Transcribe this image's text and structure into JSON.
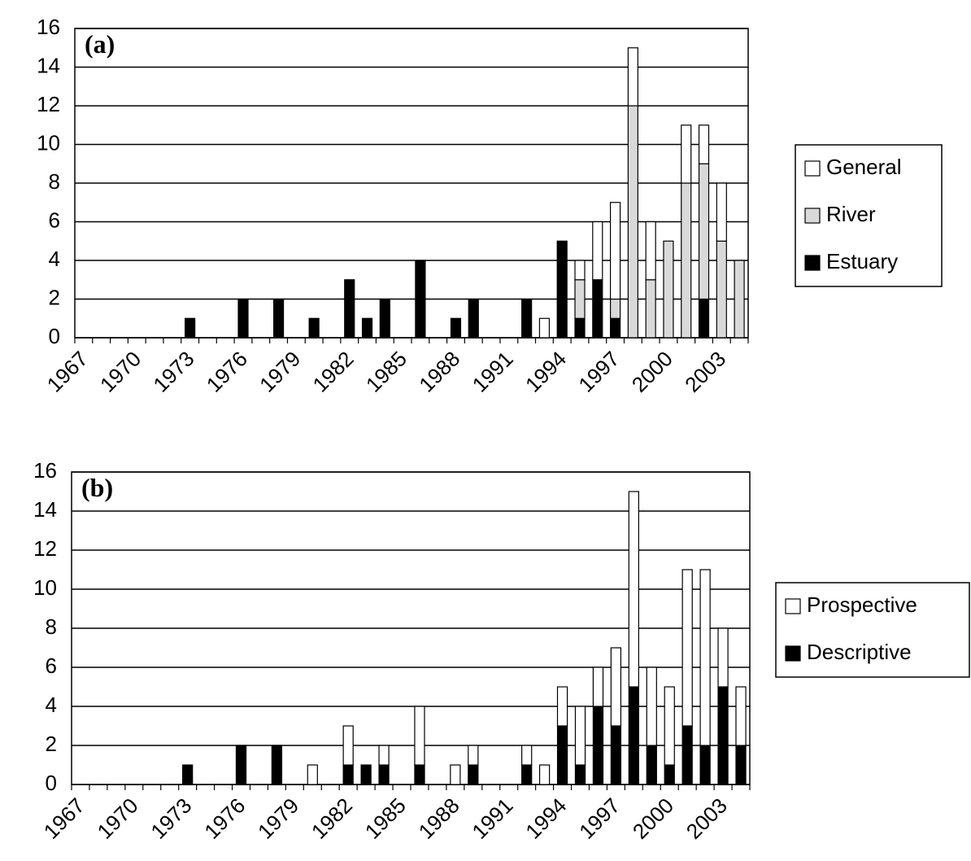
{
  "chart_data": [
    {
      "type": "bar",
      "stacked": true,
      "title": "(a)",
      "categories": [
        "1967",
        null,
        null,
        "1970",
        null,
        null,
        "1973",
        null,
        null,
        "1976",
        null,
        null,
        "1979",
        null,
        null,
        "1982",
        null,
        null,
        "1985",
        null,
        null,
        "1988",
        null,
        null,
        "1991",
        null,
        null,
        "1994",
        null,
        null,
        "1997",
        null,
        null,
        "2000",
        null,
        null,
        "2003",
        null
      ],
      "series": [
        {
          "name": "Estuary",
          "color": "#000000",
          "values": [
            0,
            0,
            0,
            0,
            0,
            0,
            1,
            0,
            0,
            2,
            0,
            2,
            0,
            1,
            0,
            3,
            1,
            2,
            0,
            4,
            0,
            1,
            2,
            0,
            0,
            2,
            0,
            5,
            1,
            3,
            1,
            0,
            0,
            0,
            0,
            2,
            0,
            0
          ]
        },
        {
          "name": "River",
          "color": "#d9d9d9",
          "values": [
            0,
            0,
            0,
            0,
            0,
            0,
            0,
            0,
            0,
            0,
            0,
            0,
            0,
            0,
            0,
            0,
            0,
            0,
            0,
            0,
            0,
            0,
            0,
            0,
            0,
            0,
            0,
            0,
            2,
            0,
            1,
            12,
            3,
            5,
            8,
            7,
            5,
            4
          ]
        },
        {
          "name": "General",
          "color": "#ffffff",
          "values": [
            0,
            0,
            0,
            0,
            0,
            0,
            0,
            0,
            0,
            0,
            0,
            0,
            0,
            0,
            0,
            0,
            0,
            0,
            0,
            0,
            0,
            0,
            0,
            0,
            0,
            0,
            1,
            0,
            1,
            3,
            5,
            3,
            3,
            0,
            3,
            2,
            3,
            0
          ]
        }
      ],
      "ylim": [
        0,
        16
      ],
      "yticks": [
        0,
        2,
        4,
        6,
        8,
        10,
        12,
        14,
        16
      ],
      "grid": true,
      "legend": "right"
    },
    {
      "type": "bar",
      "stacked": true,
      "title": "(b)",
      "categories": [
        "1967",
        null,
        null,
        "1970",
        null,
        null,
        "1973",
        null,
        null,
        "1976",
        null,
        null,
        "1979",
        null,
        null,
        "1982",
        null,
        null,
        "1985",
        null,
        null,
        "1988",
        null,
        null,
        "1991",
        null,
        null,
        "1994",
        null,
        null,
        "1997",
        null,
        null,
        "2000",
        null,
        null,
        "2003",
        null
      ],
      "series": [
        {
          "name": "Descriptive",
          "color": "#000000",
          "values": [
            0,
            0,
            0,
            0,
            0,
            0,
            1,
            0,
            0,
            2,
            0,
            2,
            0,
            0,
            0,
            1,
            1,
            1,
            0,
            1,
            0,
            0,
            1,
            0,
            0,
            1,
            0,
            3,
            1,
            4,
            3,
            5,
            2,
            1,
            3,
            2,
            5,
            2
          ]
        },
        {
          "name": "Prospective",
          "color": "#ffffff",
          "values": [
            0,
            0,
            0,
            0,
            0,
            0,
            0,
            0,
            0,
            0,
            0,
            0,
            0,
            1,
            0,
            2,
            0,
            1,
            0,
            3,
            0,
            1,
            1,
            0,
            0,
            1,
            1,
            2,
            3,
            2,
            4,
            10,
            4,
            4,
            8,
            9,
            3,
            3
          ]
        }
      ],
      "ylim": [
        0,
        16
      ],
      "yticks": [
        0,
        2,
        4,
        6,
        8,
        10,
        12,
        14,
        16
      ],
      "grid": true,
      "legend": "right"
    }
  ]
}
